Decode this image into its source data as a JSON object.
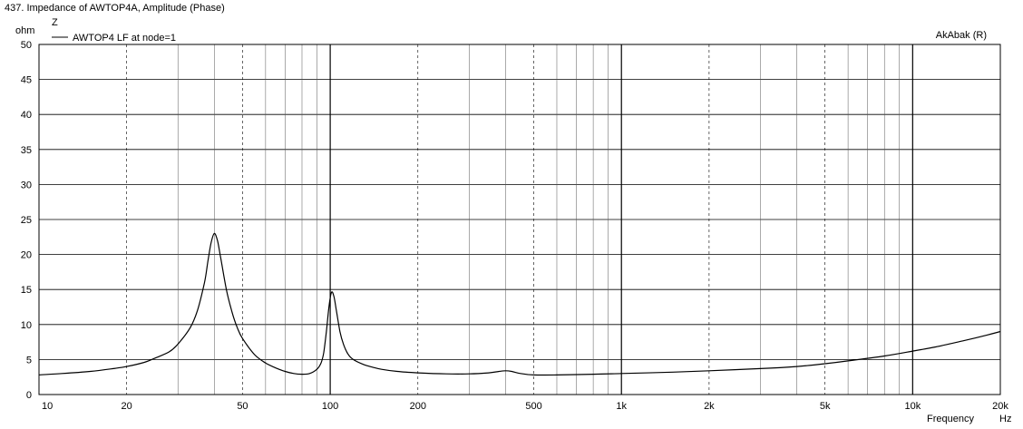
{
  "chart_data": {
    "type": "line",
    "title": "437. Impedance of AWTOP4A, Amplitude (Phase)",
    "ylabel_symbol": "Z",
    "ylabel_unit": "ohm",
    "xlabel": "Frequency",
    "xunit": "Hz",
    "watermark": "AkAbak (R)",
    "x_scale": "log",
    "xlim": [
      10,
      20000
    ],
    "ylim": [
      0,
      50
    ],
    "y_ticks": [
      0,
      5,
      10,
      15,
      20,
      25,
      30,
      35,
      40,
      45,
      50
    ],
    "x_ticks": [
      {
        "value": 10,
        "label": "10"
      },
      {
        "value": 20,
        "label": "20"
      },
      {
        "value": 50,
        "label": "50"
      },
      {
        "value": 100,
        "label": "100"
      },
      {
        "value": 200,
        "label": "200"
      },
      {
        "value": 500,
        "label": "500"
      },
      {
        "value": 1000,
        "label": "1k"
      },
      {
        "value": 2000,
        "label": "2k"
      },
      {
        "value": 5000,
        "label": "5k"
      },
      {
        "value": 10000,
        "label": "10k"
      },
      {
        "value": 20000,
        "label": "20k"
      }
    ],
    "grid": true,
    "legend_position": "top-left",
    "series": [
      {
        "name": "AWTOP4 LF at node=1",
        "color": "#000000",
        "x": [
          10,
          12,
          15,
          18,
          20,
          23,
          25,
          28,
          30,
          33,
          35,
          37,
          38,
          39,
          40,
          41,
          42,
          44,
          46,
          48,
          50,
          55,
          60,
          65,
          70,
          75,
          80,
          85,
          90,
          93,
          95,
          97,
          99,
          101,
          103,
          105,
          108,
          111,
          115,
          120,
          130,
          140,
          150,
          170,
          200,
          250,
          300,
          350,
          380,
          400,
          420,
          450,
          500,
          600,
          800,
          1000,
          1500,
          2000,
          3000,
          4000,
          5000,
          6000,
          8000,
          10000,
          12000,
          15000,
          18000,
          20000
        ],
        "y": [
          2.8,
          3.0,
          3.3,
          3.7,
          4.0,
          4.6,
          5.2,
          6.1,
          7.2,
          9.5,
          12.0,
          16.0,
          19.0,
          21.7,
          23.0,
          22.0,
          19.7,
          15.0,
          11.8,
          9.5,
          8.0,
          5.7,
          4.5,
          3.8,
          3.3,
          3.0,
          2.9,
          3.0,
          3.6,
          4.5,
          6.0,
          9.0,
          12.5,
          14.6,
          14.0,
          12.0,
          9.0,
          7.2,
          5.8,
          5.0,
          4.3,
          3.9,
          3.6,
          3.3,
          3.1,
          2.95,
          2.95,
          3.1,
          3.3,
          3.4,
          3.3,
          3.0,
          2.8,
          2.8,
          2.9,
          3.0,
          3.2,
          3.4,
          3.7,
          4.0,
          4.4,
          4.8,
          5.5,
          6.2,
          6.8,
          7.7,
          8.5,
          9.0
        ]
      }
    ]
  }
}
